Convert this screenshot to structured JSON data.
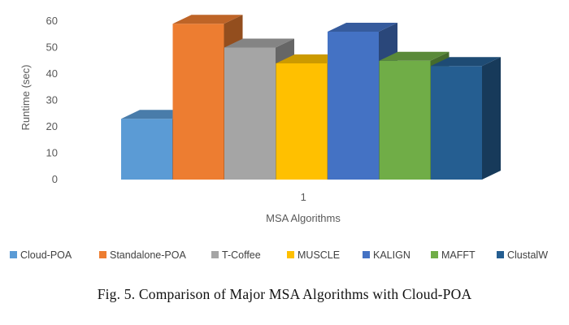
{
  "chart_data": {
    "type": "bar",
    "style": "3d-clustered-column",
    "categories": [
      "1"
    ],
    "series": [
      {
        "name": "Cloud-POA",
        "values": [
          23
        ],
        "color": "#5B9BD5"
      },
      {
        "name": "Standalone-POA",
        "values": [
          59
        ],
        "color": "#ED7D31"
      },
      {
        "name": "T-Coffee",
        "values": [
          50
        ],
        "color": "#A5A5A5"
      },
      {
        "name": "MUSCLE",
        "values": [
          44
        ],
        "color": "#FFC000"
      },
      {
        "name": "KALIGN",
        "values": [
          56
        ],
        "color": "#4472C4"
      },
      {
        "name": "MAFFT",
        "values": [
          45
        ],
        "color": "#70AD47"
      },
      {
        "name": "ClustalW",
        "values": [
          43
        ],
        "color": "#255E91"
      }
    ],
    "xlabel": "MSA Algorithms",
    "ylabel": "Runtime (sec)",
    "ylim": [
      0,
      60
    ],
    "yticks": [
      0,
      10,
      20,
      30,
      40,
      50,
      60
    ],
    "grid": false,
    "legend_position": "bottom"
  },
  "caption": "Fig. 5.   Comparison of Major MSA Algorithms with Cloud-POA"
}
